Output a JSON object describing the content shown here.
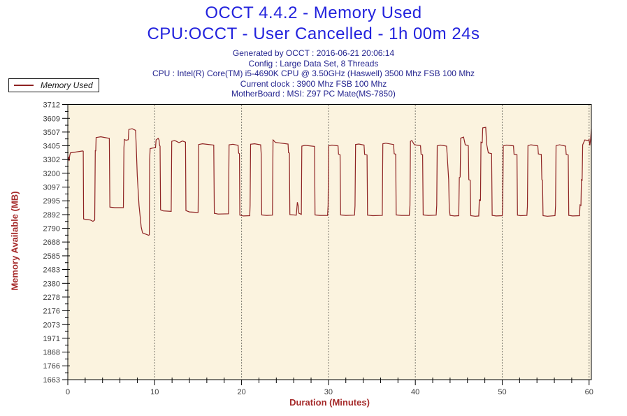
{
  "title": {
    "line1": "OCCT 4.4.2 - Memory Used",
    "line2": "CPU:OCCT - User Cancelled - 1h 00m 24s"
  },
  "subtitle_lines": [
    "Generated by OCCT : 2016-06-21 20:06:14",
    "Config : Large Data Set, 8 Threads",
    "CPU : Intel(R) Core(TM) i5-4690K CPU @ 3.50GHz (Haswell) 3500 Mhz FSB 100 Mhz",
    "Current clock : 3900 Mhz FSB 100 Mhz",
    "MotherBoard : MSI: Z97 PC Mate(MS-7850)"
  ],
  "legend": {
    "label": "Memory Used"
  },
  "colors": {
    "title": "#2222DD",
    "subtitle": "#24248F",
    "series": "#8E2222",
    "axis-title": "#A52A2A",
    "tick-label": "#3F3F3F",
    "plot-bg": "#FBF3DF",
    "plot-border": "#000000",
    "page-bg": "#FFFFFF",
    "legend-border": "#1A1A1A",
    "legend-text": "#1A1A1A"
  },
  "chart_data": {
    "type": "line",
    "title": "OCCT 4.4.2 - Memory Used",
    "xlabel": "Duration (Minutes)",
    "ylabel": "Memory Available (MB)",
    "xlim": [
      0,
      60.26
    ],
    "ylim": [
      1663,
      3712
    ],
    "x_major_ticks": [
      0,
      10,
      20,
      30,
      40,
      50,
      60
    ],
    "x_minor_step": 2,
    "y_major_ticks": [
      3712,
      3609,
      3507,
      3405,
      3302,
      3200,
      3097,
      2995,
      2892,
      2790,
      2688,
      2585,
      2483,
      2380,
      2278,
      2176,
      2073,
      1971,
      1868,
      1766,
      1663
    ],
    "grid": "vertical-dotted-at-major-x",
    "legend_position": "top-left-outside",
    "series": [
      {
        "name": "Memory Used",
        "points": [
          [
            0,
            3296
          ],
          [
            0.08,
            3322
          ],
          [
            0.15,
            3292
          ],
          [
            0.22,
            3330
          ],
          [
            0.3,
            3352
          ],
          [
            0.9,
            3358
          ],
          [
            1.7,
            3366
          ],
          [
            1.78,
            3364
          ],
          [
            1.82,
            2860
          ],
          [
            2.1,
            2856
          ],
          [
            2.6,
            2852
          ],
          [
            2.9,
            2842
          ],
          [
            3.1,
            2852
          ],
          [
            3.16,
            3368
          ],
          [
            3.22,
            3368
          ],
          [
            3.26,
            3466
          ],
          [
            3.8,
            3472
          ],
          [
            4.78,
            3460
          ],
          [
            4.84,
            2948
          ],
          [
            5.4,
            2944
          ],
          [
            6.4,
            2944
          ],
          [
            6.46,
            3390
          ],
          [
            6.52,
            3452
          ],
          [
            6.7,
            3446
          ],
          [
            6.96,
            3450
          ],
          [
            7.02,
            3526
          ],
          [
            7.4,
            3532
          ],
          [
            7.8,
            3520
          ],
          [
            7.86,
            3430
          ],
          [
            8.0,
            3180
          ],
          [
            8.2,
            2960
          ],
          [
            8.45,
            2800
          ],
          [
            8.6,
            2756
          ],
          [
            8.9,
            2748
          ],
          [
            9.32,
            2738
          ],
          [
            9.38,
            2742
          ],
          [
            9.42,
            3300
          ],
          [
            9.48,
            3384
          ],
          [
            9.8,
            3388
          ],
          [
            10.1,
            3390
          ],
          [
            10.16,
            3448
          ],
          [
            10.4,
            3460
          ],
          [
            10.5,
            3448
          ],
          [
            10.56,
            3408
          ],
          [
            10.62,
            3402
          ],
          [
            10.68,
            2928
          ],
          [
            11.0,
            2920
          ],
          [
            11.9,
            2916
          ],
          [
            11.96,
            3438
          ],
          [
            12.3,
            3444
          ],
          [
            12.8,
            3428
          ],
          [
            13.2,
            3440
          ],
          [
            13.55,
            3432
          ],
          [
            13.6,
            2922
          ],
          [
            14.0,
            2912
          ],
          [
            15.0,
            2908
          ],
          [
            15.06,
            3414
          ],
          [
            15.5,
            3420
          ],
          [
            16.8,
            3410
          ],
          [
            16.86,
            2902
          ],
          [
            17.3,
            2896
          ],
          [
            18.5,
            2898
          ],
          [
            18.56,
            3412
          ],
          [
            19.0,
            3416
          ],
          [
            19.6,
            3408
          ],
          [
            19.66,
            3350
          ],
          [
            19.76,
            3346
          ],
          [
            19.8,
            2888
          ],
          [
            20.2,
            2882
          ],
          [
            20.94,
            2884
          ],
          [
            20.98,
            2960
          ],
          [
            21.04,
            3416
          ],
          [
            21.5,
            3420
          ],
          [
            22.2,
            3412
          ],
          [
            22.26,
            3340
          ],
          [
            22.32,
            2890
          ],
          [
            22.9,
            2886
          ],
          [
            23.56,
            2888
          ],
          [
            23.62,
            3448
          ],
          [
            23.9,
            3430
          ],
          [
            25.35,
            3418
          ],
          [
            25.4,
            3354
          ],
          [
            25.5,
            3350
          ],
          [
            25.56,
            2892
          ],
          [
            26.3,
            2888
          ],
          [
            26.42,
            2984
          ],
          [
            26.52,
            2958
          ],
          [
            26.6,
            2902
          ],
          [
            26.88,
            2894
          ],
          [
            26.94,
            3402
          ],
          [
            27.3,
            3408
          ],
          [
            28.4,
            3400
          ],
          [
            28.46,
            2890
          ],
          [
            29.0,
            2886
          ],
          [
            29.9,
            2886
          ],
          [
            29.96,
            2962
          ],
          [
            30.02,
            3404
          ],
          [
            30.4,
            3410
          ],
          [
            31.1,
            3404
          ],
          [
            31.16,
            3342
          ],
          [
            31.34,
            3338
          ],
          [
            31.4,
            2890
          ],
          [
            32.0,
            2886
          ],
          [
            33.0,
            2888
          ],
          [
            33.06,
            2958
          ],
          [
            33.12,
            3414
          ],
          [
            33.5,
            3418
          ],
          [
            34.1,
            3410
          ],
          [
            34.16,
            3340
          ],
          [
            34.44,
            3336
          ],
          [
            34.5,
            2888
          ],
          [
            35.1,
            2884
          ],
          [
            36.2,
            2886
          ],
          [
            36.26,
            3420
          ],
          [
            36.6,
            3424
          ],
          [
            37.5,
            3414
          ],
          [
            37.56,
            3346
          ],
          [
            37.74,
            3342
          ],
          [
            37.8,
            2890
          ],
          [
            38.4,
            2886
          ],
          [
            39.3,
            2886
          ],
          [
            39.38,
            2960
          ],
          [
            39.44,
            3438
          ],
          [
            39.6,
            3444
          ],
          [
            39.9,
            3412
          ],
          [
            40.6,
            3406
          ],
          [
            40.66,
            3342
          ],
          [
            40.84,
            3338
          ],
          [
            40.9,
            2890
          ],
          [
            41.5,
            2886
          ],
          [
            42.4,
            2888
          ],
          [
            42.46,
            2962
          ],
          [
            42.52,
            3404
          ],
          [
            42.9,
            3410
          ],
          [
            43.6,
            3402
          ],
          [
            43.66,
            3340
          ],
          [
            43.84,
            3150
          ],
          [
            43.9,
            2940
          ],
          [
            44.0,
            2886
          ],
          [
            44.5,
            2882
          ],
          [
            45.0,
            2884
          ],
          [
            45.06,
            3168
          ],
          [
            45.16,
            3172
          ],
          [
            45.22,
            3462
          ],
          [
            45.55,
            3470
          ],
          [
            45.75,
            3412
          ],
          [
            46.1,
            3406
          ],
          [
            46.16,
            3152
          ],
          [
            46.32,
            3148
          ],
          [
            46.38,
            2884
          ],
          [
            46.9,
            2880
          ],
          [
            47.3,
            2882
          ],
          [
            47.36,
            3002
          ],
          [
            47.5,
            2998
          ],
          [
            47.56,
            3432
          ],
          [
            47.7,
            3428
          ],
          [
            47.76,
            3538
          ],
          [
            48.1,
            3542
          ],
          [
            48.2,
            3420
          ],
          [
            48.4,
            3352
          ],
          [
            48.78,
            3346
          ],
          [
            48.84,
            2886
          ],
          [
            49.3,
            2882
          ],
          [
            50.0,
            2884
          ],
          [
            50.06,
            2962
          ],
          [
            50.12,
            3404
          ],
          [
            50.5,
            3410
          ],
          [
            51.3,
            3404
          ],
          [
            51.36,
            3342
          ],
          [
            51.7,
            3338
          ],
          [
            51.76,
            2888
          ],
          [
            52.1,
            2884
          ],
          [
            52.84,
            2886
          ],
          [
            52.9,
            2952
          ],
          [
            52.96,
            3406
          ],
          [
            53.3,
            3412
          ],
          [
            54.1,
            3404
          ],
          [
            54.16,
            3344
          ],
          [
            54.5,
            3340
          ],
          [
            54.56,
            3152
          ],
          [
            54.64,
            3148
          ],
          [
            54.7,
            2884
          ],
          [
            55.2,
            2880
          ],
          [
            56.08,
            2884
          ],
          [
            56.14,
            2958
          ],
          [
            56.2,
            3406
          ],
          [
            56.6,
            3412
          ],
          [
            57.3,
            3402
          ],
          [
            57.36,
            3340
          ],
          [
            57.6,
            3336
          ],
          [
            57.66,
            2886
          ],
          [
            58.1,
            2882
          ],
          [
            58.9,
            2884
          ],
          [
            58.96,
            2964
          ],
          [
            59.06,
            2960
          ],
          [
            59.12,
            3152
          ],
          [
            59.2,
            3148
          ],
          [
            59.26,
            3412
          ],
          [
            59.5,
            3448
          ],
          [
            59.9,
            3444
          ],
          [
            60.0,
            3452
          ],
          [
            60.08,
            3408
          ],
          [
            60.18,
            3456
          ],
          [
            60.26,
            3530
          ]
        ]
      }
    ]
  }
}
